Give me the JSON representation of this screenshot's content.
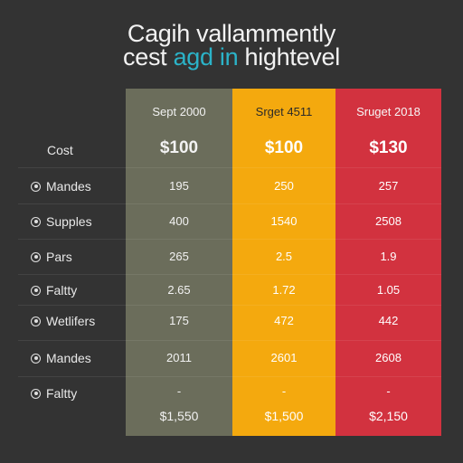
{
  "title": {
    "line1": "Cagih vallammently",
    "line2_a": "cest",
    "line2_accent": "agd in",
    "line2_b": "hightevel"
  },
  "columns": [
    {
      "header": "Sept 2000",
      "cost": "$100",
      "total": "$1,550",
      "color": "#6b6d5b"
    },
    {
      "header": "Srget 4511",
      "cost": "$100",
      "total": "$1,500",
      "color": "#f4a90e"
    },
    {
      "header": "Sruget 2018",
      "cost": "$130",
      "total": "$2,150",
      "color": "#d2323f"
    }
  ],
  "cost_label": "Cost",
  "rows": [
    {
      "label": "Mandes",
      "values": [
        "195",
        "250",
        "257"
      ]
    },
    {
      "label": "Supples",
      "values": [
        "400",
        "1540",
        "2508"
      ]
    },
    {
      "label": "Pars",
      "values": [
        "265",
        "2.5",
        "1.9"
      ]
    },
    {
      "label": "Faltty",
      "values": [
        "2.65",
        "1.72",
        "1.05"
      ]
    },
    {
      "label": "Wetlifers",
      "values": [
        "175",
        "472",
        "442"
      ]
    },
    {
      "label": "Mandes",
      "values": [
        "2011",
        "2601",
        "2608"
      ]
    },
    {
      "label": "Faltty",
      "values": [
        "-",
        "-",
        "-"
      ]
    }
  ]
}
